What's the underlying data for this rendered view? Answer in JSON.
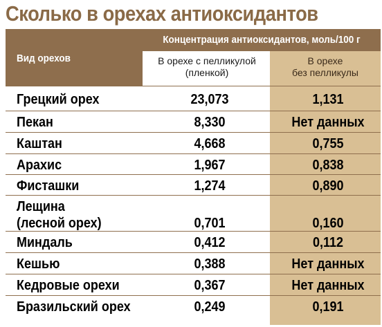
{
  "title": "Сколько в орехах антиоксидантов",
  "header": {
    "nut_type": "Вид орехов",
    "concentration": "Концентрация антиоксидантов, моль/100 г",
    "with_skin": "В орехе с пелликулой\n(пленкой)",
    "without_skin": "В орехе\nбез пелликулы"
  },
  "rows": [
    {
      "name": "Грецкий орех",
      "with": "23,073",
      "without": "1,131"
    },
    {
      "name": "Пекан",
      "with": "8,330",
      "without": "Нет данных"
    },
    {
      "name": "Каштан",
      "with": "4,668",
      "without": "0,755"
    },
    {
      "name": "Арахис",
      "with": "1,967",
      "without": "0,838"
    },
    {
      "name": "Фисташки",
      "with": "1,274",
      "without": "0,890"
    },
    {
      "name": "Лещина\n(лесной орех)",
      "with": "0,701",
      "without": "0,160"
    },
    {
      "name": "Миндаль",
      "with": "0,412",
      "without": "0,112"
    },
    {
      "name": "Кешью",
      "with": "0,388",
      "without": "Нет данных"
    },
    {
      "name": "Кедровые орехи",
      "with": "0,367",
      "without": "Нет данных"
    },
    {
      "name": "Бразильский орех",
      "with": "0,249",
      "without": "0,191"
    }
  ],
  "colors": {
    "title": "#8a6a47",
    "header_bg": "#8e6e4d",
    "column_tint": "#d9bf94"
  }
}
